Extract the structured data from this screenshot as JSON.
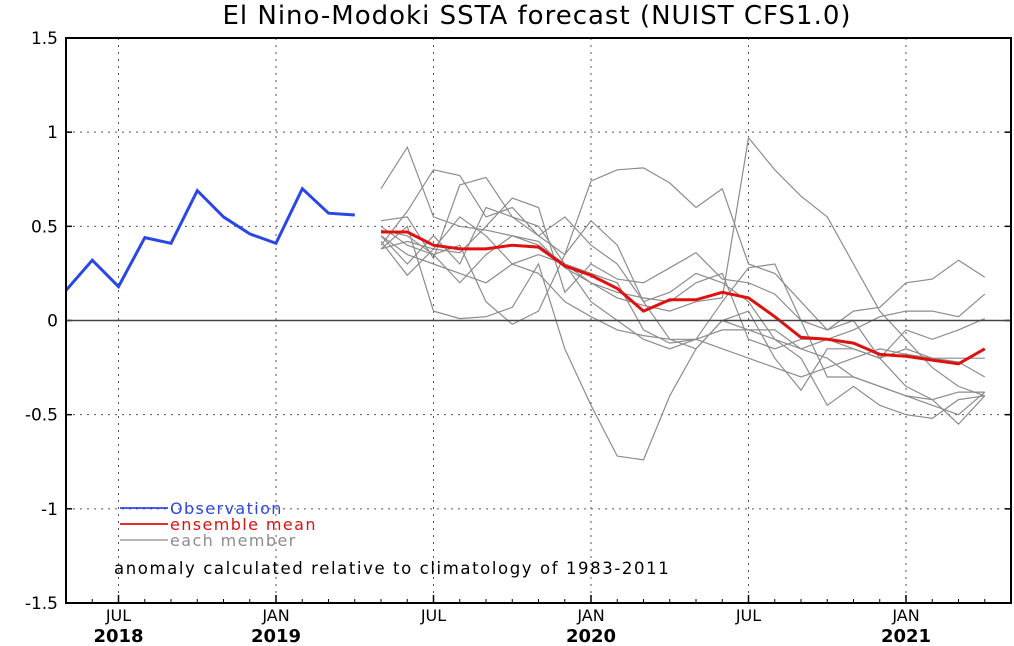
{
  "chart_data": {
    "type": "line",
    "title": "El Nino-Modoki SSTA forecast (NUIST CFS1.0)",
    "ylim": [
      -1.5,
      1.5
    ],
    "yticks": [
      "1.5",
      "1",
      "0.5",
      "0",
      "-0.5",
      "-1",
      "-1.5"
    ],
    "ytick_values": [
      1.5,
      1.0,
      0.5,
      0.0,
      -0.5,
      -1.0,
      -1.5
    ],
    "xlim_month_index": [
      0,
      36
    ],
    "xticks": [
      {
        "month": "JUL",
        "year": "2018",
        "index": 2
      },
      {
        "month": "JAN",
        "year": "2019",
        "index": 8
      },
      {
        "month": "JUL",
        "year": "",
        "index": 14
      },
      {
        "month": "JAN",
        "year": "2020",
        "index": 20
      },
      {
        "month": "JUL",
        "year": "",
        "index": 26
      },
      {
        "month": "JAN",
        "year": "2021",
        "index": 32
      }
    ],
    "grid": true,
    "zero_line": true,
    "colors": {
      "observation": "#2b46e6",
      "ensemble_mean": "#e01010",
      "member": "#8c8c8c",
      "axis": "#000000"
    },
    "legend": [
      {
        "label": "Observation",
        "color": "#2b46e6",
        "key": "observation"
      },
      {
        "label": "ensemble mean",
        "color": "#e01010",
        "key": "ensemble_mean"
      },
      {
        "label": "each member",
        "color": "#8c8c8c",
        "key": "member"
      }
    ],
    "annotation": "anomaly calculated relative to climatology of 1983-2011",
    "observation": {
      "x": [
        0,
        1,
        2,
        3,
        4,
        5,
        6,
        7,
        8,
        9,
        10,
        11
      ],
      "y": [
        0.16,
        0.32,
        0.18,
        0.44,
        0.41,
        0.69,
        0.55,
        0.46,
        0.41,
        0.7,
        0.57,
        0.56
      ]
    },
    "ensemble_mean": {
      "x": [
        12,
        13,
        14,
        15,
        16,
        17,
        18,
        19,
        20,
        21,
        22,
        23,
        24,
        25,
        26,
        27,
        28,
        29,
        30,
        31,
        32,
        33,
        34,
        35
      ],
      "y": [
        0.47,
        0.47,
        0.4,
        0.38,
        0.38,
        0.4,
        0.39,
        0.29,
        0.24,
        0.17,
        0.05,
        0.11,
        0.11,
        0.15,
        0.12,
        0.02,
        -0.09,
        -0.1,
        -0.12,
        -0.18,
        -0.19,
        -0.21,
        -0.23,
        -0.15
      ]
    },
    "members": [
      {
        "x": [
          12,
          13,
          14,
          15,
          16,
          17,
          18,
          19,
          20,
          21,
          22,
          23,
          24,
          25,
          26,
          27,
          28,
          29,
          30,
          31,
          32,
          33,
          34,
          35
        ],
        "y": [
          0.7,
          0.92,
          0.55,
          0.5,
          0.48,
          0.45,
          0.4,
          0.3,
          0.2,
          0.12,
          0.08,
          0.05,
          0.1,
          0.12,
          0.97,
          0.8,
          0.66,
          0.55,
          0.3,
          0.05,
          -0.1,
          -0.25,
          -0.35,
          -0.4
        ]
      },
      {
        "x": [
          12,
          13,
          14,
          15,
          16,
          17,
          18,
          19,
          20,
          21,
          22,
          23,
          24,
          25,
          26,
          27,
          28,
          29,
          30,
          31,
          32,
          33,
          34,
          35
        ],
        "y": [
          0.4,
          0.58,
          0.8,
          0.77,
          0.55,
          0.6,
          0.45,
          0.35,
          0.74,
          0.8,
          0.81,
          0.73,
          0.6,
          0.7,
          0.3,
          0.25,
          0.1,
          -0.05,
          0.0,
          -0.2,
          -0.35,
          -0.42,
          -0.55,
          -0.4
        ]
      },
      {
        "x": [
          12,
          13,
          14,
          15,
          16,
          17,
          18,
          19,
          20,
          21,
          22,
          23,
          24,
          25,
          26,
          27,
          28,
          29,
          30,
          31,
          32,
          33,
          34,
          35
        ],
        "y": [
          0.53,
          0.55,
          0.33,
          0.72,
          0.76,
          0.55,
          0.5,
          0.3,
          0.1,
          0.0,
          -0.1,
          -0.15,
          -0.1,
          0.1,
          0.28,
          0.3,
          0.0,
          -0.3,
          -0.3,
          -0.35,
          -0.4,
          -0.45,
          -0.5,
          -0.38
        ]
      },
      {
        "x": [
          12,
          13,
          14,
          15,
          16,
          17,
          18,
          19,
          20,
          21,
          22,
          23,
          24,
          25,
          26,
          27,
          28,
          29,
          30,
          31,
          32,
          33,
          34,
          35
        ],
        "y": [
          0.45,
          0.3,
          0.45,
          0.3,
          0.6,
          0.55,
          0.45,
          0.55,
          0.4,
          0.3,
          0.1,
          0.15,
          0.25,
          0.2,
          0.1,
          -0.1,
          -0.2,
          -0.45,
          -0.35,
          -0.45,
          -0.5,
          -0.52,
          -0.42,
          -0.4
        ]
      },
      {
        "x": [
          12,
          13,
          14,
          15,
          16,
          17,
          18,
          19,
          20,
          21,
          22,
          23,
          24,
          25,
          26,
          27,
          28,
          29,
          30,
          31,
          32,
          33,
          34,
          35
        ],
        "y": [
          0.38,
          0.5,
          0.05,
          0.01,
          0.02,
          0.07,
          0.3,
          -0.15,
          -0.45,
          -0.72,
          -0.74,
          -0.4,
          -0.15,
          0.0,
          -0.05,
          -0.05,
          -0.15,
          -0.2,
          -0.3,
          -0.35,
          -0.4,
          -0.42,
          -0.38,
          -0.38
        ]
      },
      {
        "x": [
          12,
          13,
          14,
          15,
          16,
          17,
          18,
          19,
          20,
          21,
          22,
          23,
          24,
          25,
          26,
          27,
          28,
          29,
          30,
          31,
          32,
          33,
          34,
          35
        ],
        "y": [
          0.48,
          0.45,
          0.35,
          0.4,
          0.1,
          -0.02,
          0.05,
          0.35,
          0.53,
          0.4,
          0.1,
          -0.1,
          -0.15,
          0.0,
          0.05,
          -0.2,
          -0.37,
          -0.15,
          -0.15,
          -0.2,
          -0.05,
          -0.1,
          -0.05,
          0.01
        ]
      },
      {
        "x": [
          12,
          13,
          14,
          15,
          16,
          17,
          18,
          19,
          20,
          21,
          22,
          23,
          24,
          25,
          26,
          27,
          28,
          29,
          30,
          31,
          32,
          33,
          34,
          35
        ],
        "y": [
          0.42,
          0.24,
          0.38,
          0.55,
          0.45,
          0.3,
          0.35,
          0.3,
          0.25,
          0.2,
          -0.05,
          -0.12,
          -0.1,
          -0.15,
          -0.2,
          -0.25,
          -0.3,
          -0.25,
          -0.2,
          -0.15,
          -0.18,
          -0.2,
          -0.22,
          -0.3
        ]
      },
      {
        "x": [
          12,
          13,
          14,
          15,
          16,
          17,
          18,
          19,
          20,
          21,
          22,
          23,
          24,
          25,
          26,
          27,
          28,
          29,
          30,
          31,
          32,
          33,
          34,
          35
        ],
        "y": [
          0.38,
          0.42,
          0.38,
          0.36,
          0.5,
          0.65,
          0.6,
          0.15,
          0.3,
          0.22,
          0.2,
          0.28,
          0.36,
          0.22,
          0.2,
          0.14,
          0.0,
          -0.05,
          0.05,
          0.07,
          0.2,
          0.22,
          0.32,
          0.23
        ]
      },
      {
        "x": [
          12,
          13,
          14,
          15,
          16,
          17,
          18,
          19,
          20,
          21,
          22,
          23,
          24,
          25,
          26,
          27,
          28,
          29,
          30,
          31,
          32,
          33,
          34,
          35
        ],
        "y": [
          0.5,
          0.4,
          0.35,
          0.2,
          0.35,
          0.45,
          0.42,
          0.28,
          0.2,
          0.15,
          0.12,
          0.1,
          0.2,
          0.25,
          -0.1,
          -0.15,
          -0.1,
          -0.1,
          -0.05,
          0.02,
          0.05,
          0.05,
          0.02,
          0.14
        ]
      },
      {
        "x": [
          12,
          13,
          14,
          15,
          16,
          17,
          18,
          19,
          20,
          21,
          22,
          23,
          24,
          25,
          26,
          27,
          28,
          29,
          30,
          31,
          32,
          33,
          34,
          35
        ],
        "y": [
          0.45,
          0.35,
          0.3,
          0.25,
          0.2,
          0.3,
          0.25,
          0.1,
          0.02,
          -0.05,
          -0.08,
          -0.1,
          -0.1,
          -0.05,
          -0.05,
          -0.1,
          -0.15,
          -0.1,
          -0.15,
          -0.2,
          -0.15,
          -0.2,
          -0.2,
          -0.2
        ]
      }
    ]
  }
}
